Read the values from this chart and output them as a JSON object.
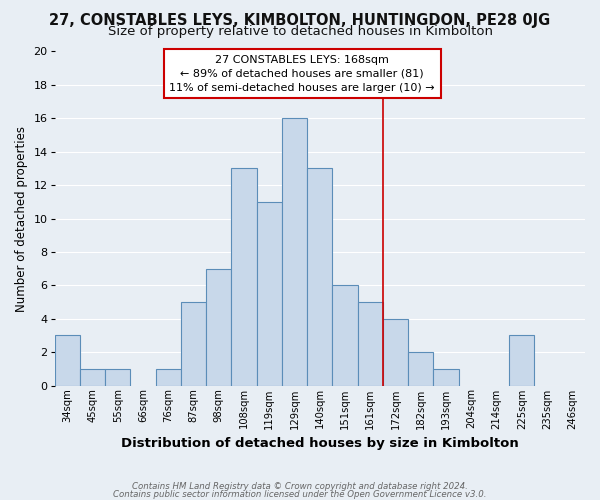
{
  "title": "27, CONSTABLES LEYS, KIMBOLTON, HUNTINGDON, PE28 0JG",
  "subtitle": "Size of property relative to detached houses in Kimbolton",
  "xlabel": "Distribution of detached houses by size in Kimbolton",
  "ylabel": "Number of detached properties",
  "bins": [
    "34sqm",
    "45sqm",
    "55sqm",
    "66sqm",
    "76sqm",
    "87sqm",
    "98sqm",
    "108sqm",
    "119sqm",
    "129sqm",
    "140sqm",
    "151sqm",
    "161sqm",
    "172sqm",
    "182sqm",
    "193sqm",
    "204sqm",
    "214sqm",
    "225sqm",
    "235sqm",
    "246sqm"
  ],
  "values": [
    3,
    1,
    1,
    0,
    1,
    5,
    7,
    13,
    11,
    16,
    13,
    6,
    5,
    4,
    2,
    1,
    0,
    0,
    3,
    0,
    0
  ],
  "bar_color": "#c8d8ea",
  "bar_edge_color": "#5b8db8",
  "vline_color": "#cc0000",
  "vline_index": 13,
  "ylim": [
    0,
    20
  ],
  "yticks": [
    0,
    2,
    4,
    6,
    8,
    10,
    12,
    14,
    16,
    18,
    20
  ],
  "annotation_title": "27 CONSTABLES LEYS: 168sqm",
  "annotation_line1": "← 89% of detached houses are smaller (81)",
  "annotation_line2": "11% of semi-detached houses are larger (10) →",
  "annotation_box_facecolor": "#ffffff",
  "annotation_box_edgecolor": "#cc0000",
  "footer1": "Contains HM Land Registry data © Crown copyright and database right 2024.",
  "footer2": "Contains public sector information licensed under the Open Government Licence v3.0.",
  "background_color": "#e8eef4",
  "grid_color": "#ffffff",
  "title_fontsize": 10.5,
  "subtitle_fontsize": 9.5,
  "ylabel_fontsize": 8.5,
  "xlabel_fontsize": 9.5
}
